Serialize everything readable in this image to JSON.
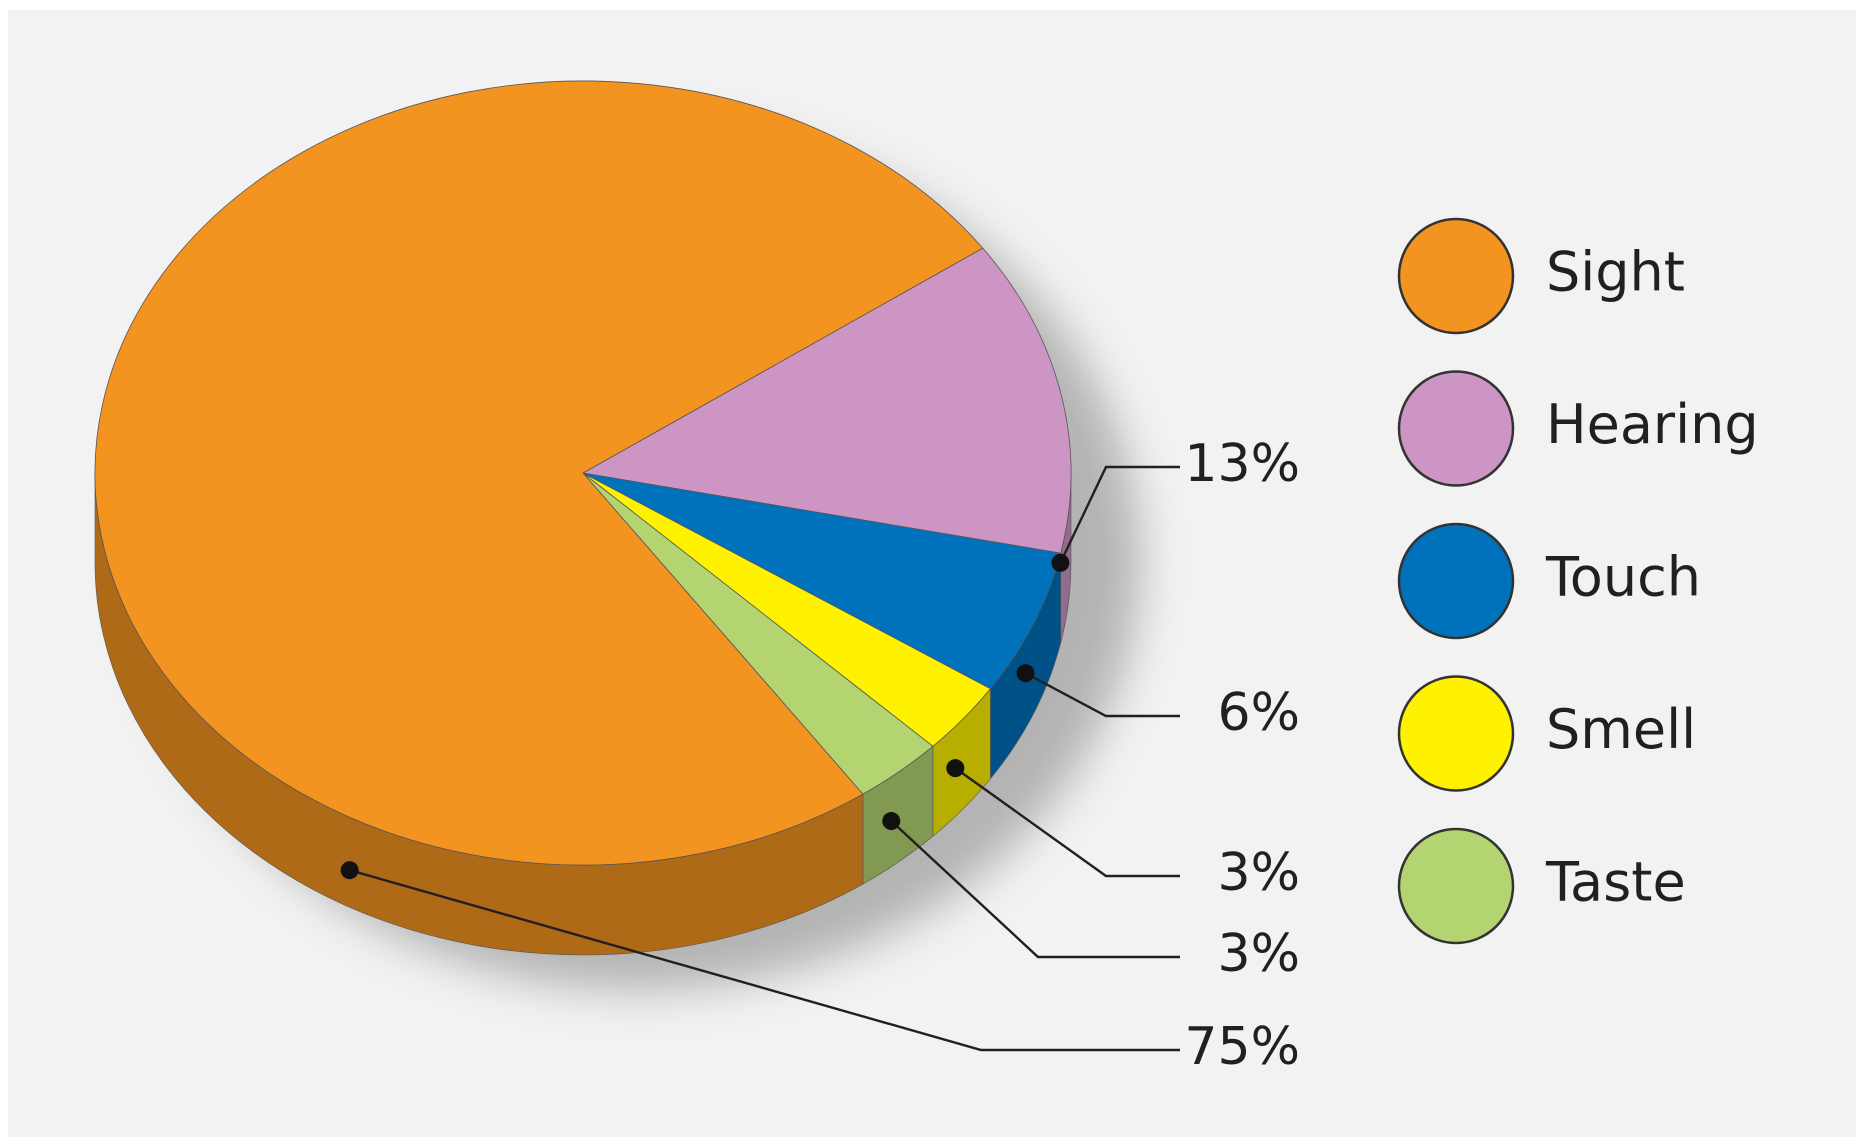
{
  "chart_data": {
    "type": "pie",
    "series": [
      {
        "name": "Sight",
        "color": "#f39320"
      },
      {
        "name": "Hearing",
        "color": "#cc95c4"
      },
      {
        "name": "Touch",
        "color": "#0071bb"
      },
      {
        "name": "Smell",
        "color": "#fff200"
      },
      {
        "name": "Taste",
        "color": "#b3d471"
      }
    ],
    "values": [
      75,
      13,
      6,
      3,
      3
    ],
    "value_labels": [
      "75%",
      "13%",
      "6%",
      "3%",
      "3%"
    ]
  }
}
